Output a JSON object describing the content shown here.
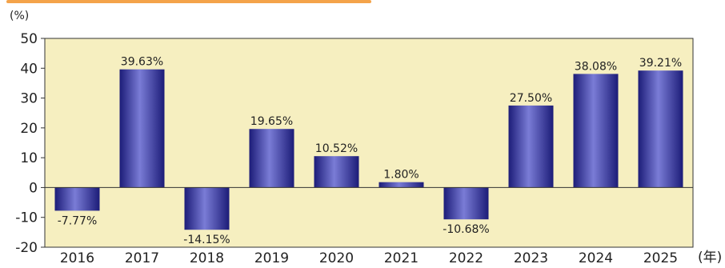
{
  "chart_data": {
    "type": "bar",
    "categories": [
      "2016",
      "2017",
      "2018",
      "2019",
      "2020",
      "2021",
      "2022",
      "2023",
      "2024",
      "2025"
    ],
    "values": [
      -7.77,
      39.63,
      -14.15,
      19.65,
      10.52,
      1.8,
      -10.68,
      27.5,
      38.08,
      39.21
    ],
    "data_labels": [
      "-7.77%",
      "39.63%",
      "-14.15%",
      "19.65%",
      "10.52%",
      "1.80%",
      "-10.68%",
      "27.50%",
      "38.08%",
      "39.21%"
    ],
    "ylabel": "(%)",
    "xlabel": "(年)",
    "ylim": [
      -20,
      50
    ],
    "yticks": [
      50,
      40,
      30,
      20,
      10,
      0,
      -10,
      -20
    ],
    "grid": false,
    "colors": {
      "plot_background": "#f6efc0",
      "bar_dark": "#1c1c78",
      "bar_light": "#7a7cd6",
      "axis": "#333333",
      "top_band": "#f4a34a"
    }
  }
}
